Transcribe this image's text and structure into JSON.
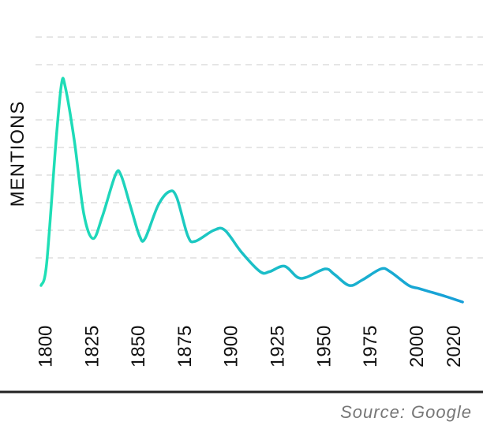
{
  "chart_data": {
    "type": "line",
    "y_label": "MENTIONS",
    "source": "Source: Google",
    "x": [
      1797,
      1800,
      1805,
      1808,
      1810,
      1815,
      1820,
      1825,
      1830,
      1837,
      1840,
      1845,
      1850,
      1853,
      1860,
      1866,
      1870,
      1876,
      1880,
      1890,
      1896,
      1905,
      1915,
      1920,
      1928,
      1935,
      1940,
      1950,
      1955,
      1963,
      1970,
      1980,
      1985,
      1995,
      2000,
      2005,
      2015,
      2024
    ],
    "values": [
      0,
      0.8,
      5.2,
      7.3,
      7.2,
      5.2,
      2.6,
      1.7,
      2.5,
      4.0,
      4.0,
      2.9,
      1.8,
      1.7,
      2.9,
      3.4,
      3.2,
      1.8,
      1.6,
      2.0,
      2.0,
      1.2,
      0.5,
      0.5,
      0.7,
      0.3,
      0.3,
      0.6,
      0.4,
      0,
      0.2,
      0.6,
      0.5,
      0,
      -0.1,
      -0.2,
      -0.4,
      -0.6
    ],
    "colors": [
      "#1fe0b5",
      "#179fd8"
    ],
    "xlim": [
      1794,
      2035
    ],
    "xticks": [
      1800,
      1825,
      1850,
      1875,
      1900,
      1925,
      1950,
      1975,
      2000,
      2020
    ],
    "ylim": [
      -1,
      9
    ],
    "yticks": [
      1,
      2,
      3,
      4,
      5,
      6,
      7,
      8,
      9
    ],
    "grid": true
  }
}
